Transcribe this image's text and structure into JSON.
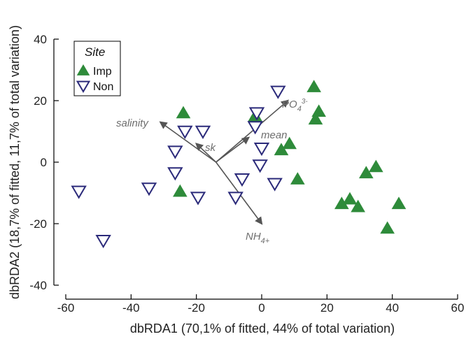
{
  "chart_data": {
    "type": "scatter",
    "xlabel": "dbRDA1 (70,1% of fitted, 44% of total variation)",
    "ylabel": "dbRDA2 (18,7% of fitted, 11,7% of total variation)",
    "xlim": [
      -62,
      62
    ],
    "ylim": [
      -42,
      42
    ],
    "x_ticks": [
      -60,
      -40,
      -20,
      0,
      20,
      40,
      60
    ],
    "y_ticks": [
      -40,
      -20,
      0,
      20,
      40
    ],
    "legend_title": "Site",
    "legend_position": "top-left",
    "series": [
      {
        "name": "Imp",
        "marker": "filled-triangle-up",
        "color": "#2e8b3a",
        "points": [
          [
            -24,
            16
          ],
          [
            -25,
            -9.5
          ],
          [
            -2,
            15
          ],
          [
            16,
            24.5
          ],
          [
            17.5,
            16.5
          ],
          [
            16.5,
            14
          ],
          [
            6,
            4
          ],
          [
            8.5,
            6
          ],
          [
            11,
            -5.5
          ],
          [
            24.5,
            -13.5
          ],
          [
            27,
            -12
          ],
          [
            29.5,
            -14.5
          ],
          [
            32,
            -3.5
          ],
          [
            35,
            -1.5
          ],
          [
            38.5,
            -21.5
          ],
          [
            42,
            -13.5
          ]
        ]
      },
      {
        "name": "Non",
        "marker": "open-triangle-down",
        "color": "#2b2a7a",
        "points": [
          [
            -56,
            -9.5
          ],
          [
            -48.5,
            -25.5
          ],
          [
            -34.5,
            -8.5
          ],
          [
            -26.5,
            3.5
          ],
          [
            -26.5,
            -3.5
          ],
          [
            -23.5,
            10
          ],
          [
            -18,
            10
          ],
          [
            -19.5,
            -11.5
          ],
          [
            -8,
            -11.5
          ],
          [
            -6,
            -5.5
          ],
          [
            -1.5,
            16
          ],
          [
            -2,
            11.5
          ],
          [
            -0.5,
            -1
          ],
          [
            0,
            4.5
          ],
          [
            4,
            -7
          ],
          [
            5,
            23
          ]
        ]
      }
    ],
    "vectors": {
      "origin": [
        -14,
        0
      ],
      "color": "#555555",
      "items": [
        {
          "name": "salinity",
          "label_main": "salinity",
          "label_sub": "",
          "label_sup": "",
          "end": [
            -31,
            13
          ]
        },
        {
          "name": "sk",
          "label_main": "sk",
          "label_sub": "",
          "label_sup": "",
          "end": [
            -20,
            6
          ]
        },
        {
          "name": "PO4",
          "label_main": "PO",
          "label_sub": "4",
          "label_sup": "3-",
          "end": [
            8,
            20
          ]
        },
        {
          "name": "mean",
          "label_main": "mean",
          "label_sub": "",
          "label_sup": "",
          "end": [
            -4,
            8
          ]
        },
        {
          "name": "NH4",
          "label_main": "NH",
          "label_sub": "4+",
          "label_sup": "",
          "end": [
            0,
            -20
          ]
        }
      ]
    }
  }
}
